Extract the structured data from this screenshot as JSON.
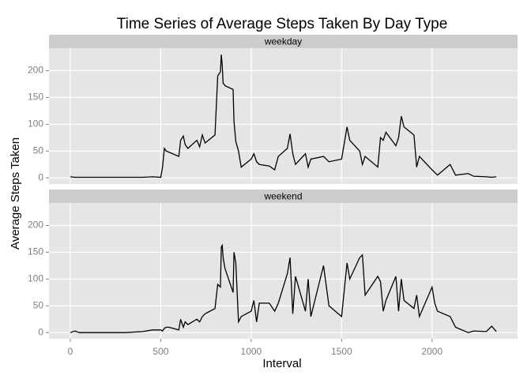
{
  "chart_data": {
    "type": "line",
    "layout": "facets",
    "title": "Time Series of Average Steps Taken By Day Type",
    "x_label": "Interval",
    "y_label": "Average Steps Taken",
    "x": [
      0,
      25,
      50,
      100,
      200,
      300,
      400,
      455,
      500,
      510,
      520,
      530,
      545,
      600,
      610,
      625,
      635,
      650,
      700,
      715,
      730,
      745,
      800,
      815,
      830,
      835,
      840,
      845,
      850,
      855,
      900,
      905,
      915,
      930,
      945,
      1000,
      1015,
      1030,
      1045,
      1100,
      1130,
      1150,
      1200,
      1215,
      1230,
      1245,
      1300,
      1315,
      1330,
      1400,
      1430,
      1500,
      1530,
      1545,
      1600,
      1615,
      1630,
      1700,
      1715,
      1730,
      1745,
      1800,
      1815,
      1830,
      1845,
      1900,
      1915,
      1930,
      2000,
      2015,
      2030,
      2100,
      2130,
      2200,
      2230,
      2300,
      2330,
      2355
    ],
    "series": [
      {
        "name": "weekday",
        "color": "#000000",
        "values": [
          2,
          1,
          1,
          1,
          1,
          1,
          1,
          2,
          1,
          20,
          55,
          50,
          48,
          40,
          70,
          78,
          62,
          55,
          70,
          58,
          80,
          65,
          80,
          190,
          198,
          230,
          210,
          176,
          175,
          172,
          165,
          105,
          68,
          50,
          20,
          35,
          45,
          30,
          25,
          22,
          15,
          40,
          55,
          82,
          45,
          25,
          45,
          20,
          35,
          40,
          30,
          35,
          95,
          70,
          50,
          25,
          40,
          20,
          75,
          70,
          85,
          60,
          75,
          115,
          95,
          80,
          20,
          40,
          15,
          10,
          5,
          25,
          5,
          8,
          3,
          2,
          1,
          2
        ]
      },
      {
        "name": "weekend",
        "color": "#000000",
        "values": [
          0,
          3,
          0,
          0,
          0,
          0,
          2,
          5,
          5,
          3,
          8,
          10,
          10,
          5,
          25,
          10,
          20,
          15,
          25,
          20,
          30,
          35,
          45,
          90,
          85,
          160,
          163,
          140,
          130,
          120,
          75,
          150,
          130,
          20,
          30,
          40,
          60,
          20,
          55,
          55,
          40,
          55,
          110,
          140,
          35,
          105,
          40,
          100,
          30,
          125,
          50,
          30,
          130,
          100,
          140,
          145,
          70,
          105,
          95,
          40,
          60,
          105,
          40,
          100,
          60,
          45,
          70,
          30,
          85,
          55,
          40,
          30,
          10,
          0,
          3,
          2,
          12,
          2
        ]
      }
    ],
    "xlim": [
      -117.75,
      2472.75
    ],
    "xticks": [
      0,
      500,
      1000,
      1500,
      2000
    ],
    "ylim": [
      -11.5,
      242
    ],
    "yticks": [
      0,
      50,
      100,
      150,
      200
    ],
    "grid": true
  }
}
